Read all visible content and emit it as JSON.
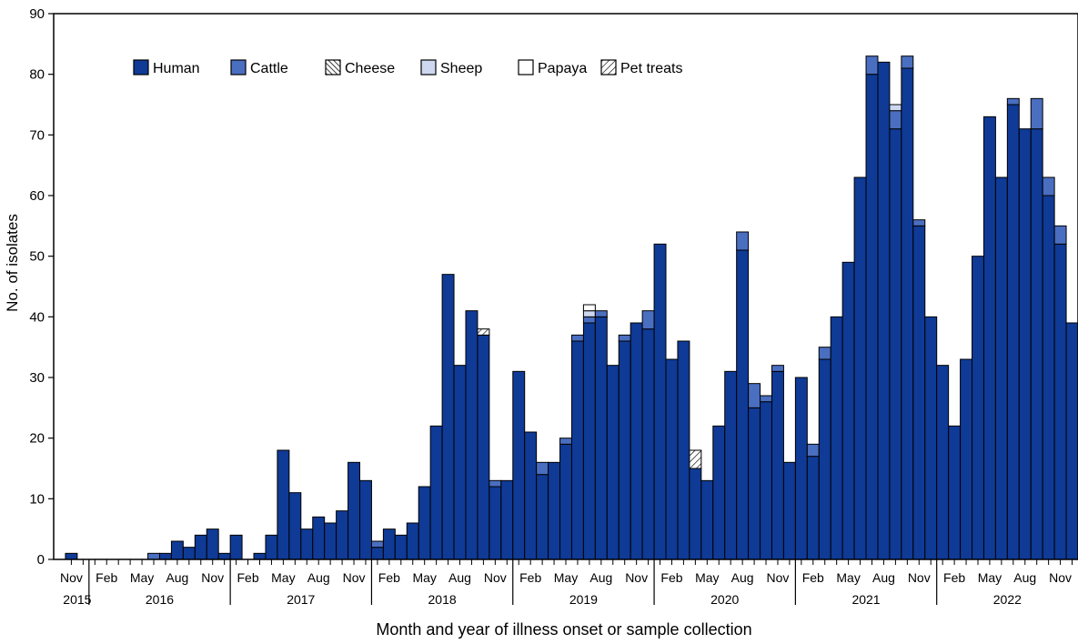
{
  "chart_data": {
    "type": "bar",
    "stacked": true,
    "ylabel": "No. of isolates",
    "xlabel": "Month and year of illness onset or sample collection",
    "ylim": [
      0,
      90
    ],
    "yticks": [
      0,
      10,
      20,
      30,
      40,
      50,
      60,
      70,
      80,
      90
    ],
    "legend_position": "top-left",
    "first_month": "2015-11",
    "year_labels": [
      "2015",
      "2016",
      "2017",
      "2018",
      "2019",
      "2020",
      "2021",
      "2022"
    ],
    "month_tick_labels": [
      "Feb",
      "May",
      "Aug",
      "Nov"
    ],
    "series": [
      {
        "name": "Human",
        "color": "#0f3a96",
        "pattern": "solid",
        "values": [
          1,
          0,
          0,
          0,
          0,
          0,
          0,
          0,
          1,
          3,
          2,
          4,
          5,
          1,
          4,
          0,
          1,
          4,
          18,
          11,
          5,
          7,
          6,
          8,
          16,
          13,
          2,
          5,
          4,
          6,
          12,
          22,
          47,
          32,
          41,
          37,
          12,
          13,
          31,
          21,
          14,
          16,
          19,
          36,
          39,
          40,
          32,
          36,
          39,
          38,
          52,
          33,
          36,
          15,
          13,
          22,
          31,
          51,
          25,
          26,
          31,
          16,
          30,
          17,
          33,
          40,
          49,
          63,
          80,
          82,
          71,
          81,
          55,
          40,
          32,
          22,
          33,
          50,
          73,
          63,
          75,
          71,
          71,
          60,
          52,
          39
        ]
      },
      {
        "name": "Cattle",
        "color": "#4a6ec0",
        "pattern": "solid",
        "values": [
          0,
          0,
          0,
          0,
          0,
          0,
          0,
          1,
          0,
          0,
          0,
          0,
          0,
          0,
          0,
          0,
          0,
          0,
          0,
          0,
          0,
          0,
          0,
          0,
          0,
          0,
          1,
          0,
          0,
          0,
          0,
          0,
          0,
          0,
          0,
          0,
          1,
          0,
          0,
          0,
          2,
          0,
          1,
          1,
          1,
          1,
          0,
          1,
          0,
          3,
          0,
          0,
          0,
          0,
          0,
          0,
          0,
          3,
          4,
          1,
          1,
          0,
          0,
          2,
          2,
          0,
          0,
          0,
          3,
          0,
          3,
          2,
          1,
          0,
          0,
          0,
          0,
          0,
          0,
          0,
          1,
          0,
          5,
          3,
          3,
          0
        ]
      },
      {
        "name": "Cheese",
        "color": "#ffffff",
        "pattern": "dense-hatch",
        "values": [
          0,
          0,
          0,
          0,
          0,
          0,
          0,
          0,
          0,
          0,
          0,
          0,
          0,
          0,
          0,
          0,
          0,
          0,
          0,
          0,
          0,
          0,
          0,
          0,
          0,
          0,
          0,
          0,
          0,
          0,
          0,
          0,
          0,
          0,
          0,
          0,
          0,
          0,
          0,
          0,
          0,
          0,
          0,
          0,
          0,
          0,
          0,
          0,
          0,
          0,
          0,
          0,
          0,
          0,
          0,
          0,
          0,
          0,
          0,
          0,
          0,
          0,
          0,
          0,
          0,
          0,
          0,
          0,
          0,
          0,
          0,
          0,
          0,
          0,
          0,
          0,
          0,
          0,
          0,
          0,
          0,
          0,
          0,
          0,
          0,
          0
        ]
      },
      {
        "name": "Sheep",
        "color": "#cdd7ef",
        "pattern": "solid",
        "values": [
          0,
          0,
          0,
          0,
          0,
          0,
          0,
          0,
          0,
          0,
          0,
          0,
          0,
          0,
          0,
          0,
          0,
          0,
          0,
          0,
          0,
          0,
          0,
          0,
          0,
          0,
          0,
          0,
          0,
          0,
          0,
          0,
          0,
          0,
          0,
          0,
          0,
          0,
          0,
          0,
          0,
          0,
          0,
          0,
          1,
          0,
          0,
          0,
          0,
          0,
          0,
          0,
          0,
          0,
          0,
          0,
          0,
          0,
          0,
          0,
          0,
          0,
          0,
          0,
          0,
          0,
          0,
          0,
          0,
          0,
          1,
          0,
          0,
          0,
          0,
          0,
          0,
          0,
          0,
          0,
          0,
          0,
          0,
          0,
          0,
          0
        ]
      },
      {
        "name": "Papaya",
        "color": "#ffffff",
        "pattern": "solid",
        "values": [
          0,
          0,
          0,
          0,
          0,
          0,
          0,
          0,
          0,
          0,
          0,
          0,
          0,
          0,
          0,
          0,
          0,
          0,
          0,
          0,
          0,
          0,
          0,
          0,
          0,
          0,
          0,
          0,
          0,
          0,
          0,
          0,
          0,
          0,
          0,
          0,
          0,
          0,
          0,
          0,
          0,
          0,
          0,
          0,
          1,
          0,
          0,
          0,
          0,
          0,
          0,
          0,
          0,
          0,
          0,
          0,
          0,
          0,
          0,
          0,
          0,
          0,
          0,
          0,
          0,
          0,
          0,
          0,
          0,
          0,
          0,
          0,
          0,
          0,
          0,
          0,
          0,
          0,
          0,
          0,
          0,
          0,
          0,
          0,
          0,
          0
        ]
      },
      {
        "name": "Pet treats",
        "color": "#ffffff",
        "pattern": "hatch",
        "values": [
          0,
          0,
          0,
          0,
          0,
          0,
          0,
          0,
          0,
          0,
          0,
          0,
          0,
          0,
          0,
          0,
          0,
          0,
          0,
          0,
          0,
          0,
          0,
          0,
          0,
          0,
          0,
          0,
          0,
          0,
          0,
          0,
          0,
          0,
          0,
          1,
          0,
          0,
          0,
          0,
          0,
          0,
          0,
          0,
          0,
          0,
          0,
          0,
          0,
          0,
          0,
          0,
          0,
          3,
          0,
          0,
          0,
          0,
          0,
          0,
          0,
          0,
          0,
          0,
          0,
          0,
          0,
          0,
          0,
          0,
          0,
          0,
          0,
          0,
          0,
          0,
          0,
          0,
          0,
          0,
          0,
          0,
          0,
          0,
          0,
          0
        ]
      }
    ]
  }
}
